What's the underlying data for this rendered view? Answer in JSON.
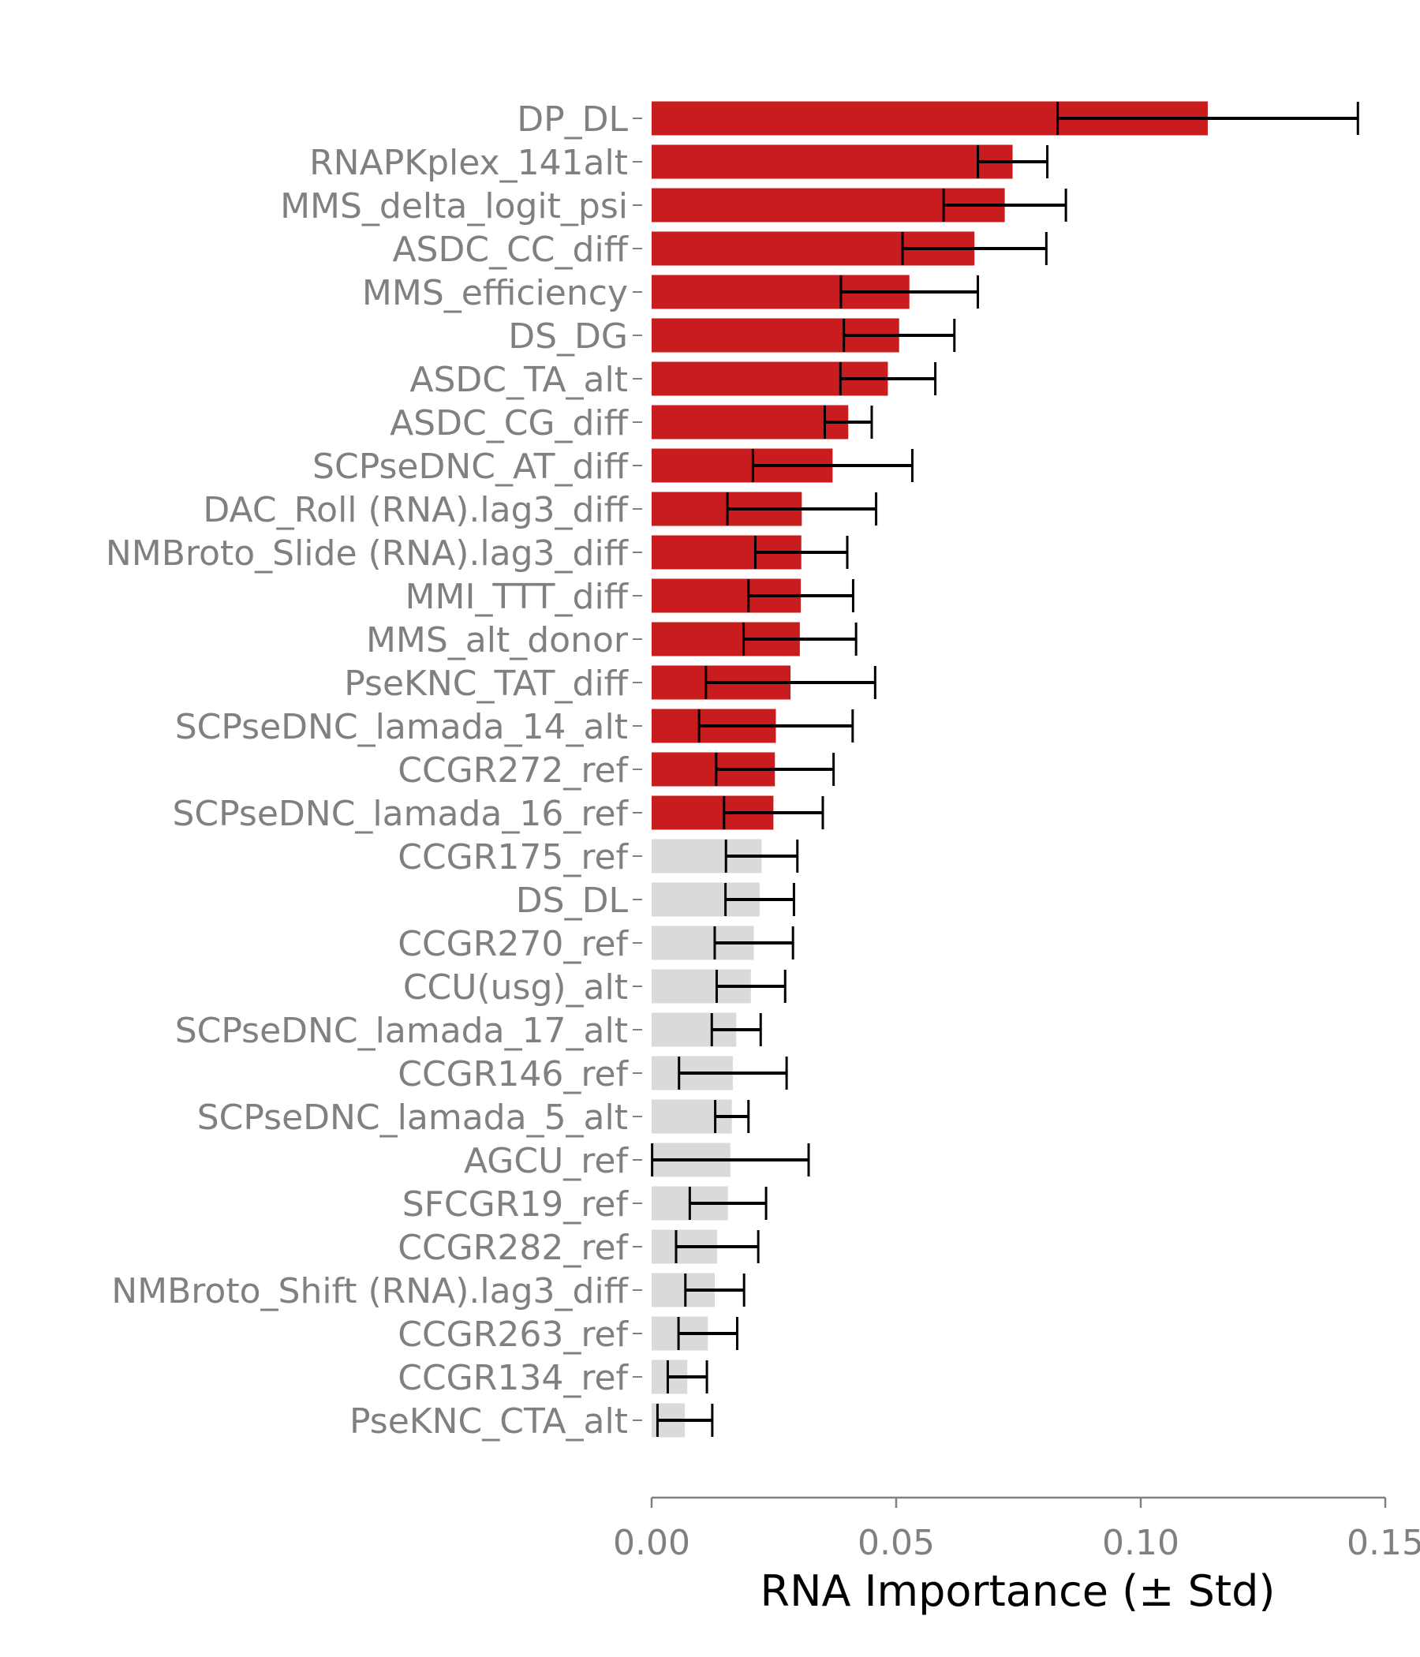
{
  "chart_data": {
    "type": "bar",
    "orientation": "horizontal",
    "xlabel": "RNA Importance (± Std)",
    "xlim": [
      0,
      0.15
    ],
    "xticks": [
      0.0,
      0.05,
      0.1,
      0.15
    ],
    "xtick_labels": [
      "0.00",
      "0.05",
      "0.10",
      "0.15"
    ],
    "grid": false,
    "colors": {
      "highlight": "#c81c1e",
      "other": "#dadada",
      "errorbar": "#000000"
    },
    "categories": [
      "DP_DL",
      "RNAPKplex_141alt",
      "MMS_delta_logit_psi",
      "ASDC_CC_diff",
      "MMS_efficiency",
      "DS_DG",
      "ASDC_TA_alt",
      "ASDC_CG_diff",
      "SCPseDNC_AT_diff",
      "DAC_Roll (RNA).lag3_diff",
      "NMBroto_Slide (RNA).lag3_diff",
      "MMI_TTT_diff",
      "MMS_alt_donor",
      "PseKNC_TAT_diff",
      "SCPseDNC_lamada_14_alt",
      "CCGR272_ref",
      "SCPseDNC_lamada_16_ref",
      "CCGR175_ref",
      "DS_DL",
      "CCGR270_ref",
      "CCU(usg)_alt",
      "SCPseDNC_lamada_17_alt",
      "CCGR146_ref",
      "SCPseDNC_lamada_5_alt",
      "AGCU_ref",
      "SFCGR19_ref",
      "CCGR282_ref",
      "NMBroto_Shift (RNA).lag3_diff",
      "CCGR263_ref",
      "CCGR134_ref",
      "PseKNC_CTA_alt"
    ],
    "values": [
      0.1137,
      0.0738,
      0.0722,
      0.066,
      0.0527,
      0.0506,
      0.0483,
      0.0402,
      0.037,
      0.0307,
      0.0306,
      0.0305,
      0.0303,
      0.0284,
      0.0254,
      0.0252,
      0.0249,
      0.0225,
      0.0221,
      0.0209,
      0.0203,
      0.0173,
      0.0166,
      0.0164,
      0.0161,
      0.0156,
      0.0134,
      0.0129,
      0.0115,
      0.0073,
      0.0068
    ],
    "std": [
      0.0307,
      0.0071,
      0.0125,
      0.0147,
      0.014,
      0.0113,
      0.0097,
      0.0048,
      0.0163,
      0.0152,
      0.0094,
      0.0107,
      0.0115,
      0.0173,
      0.0157,
      0.012,
      0.0101,
      0.0073,
      0.007,
      0.008,
      0.007,
      0.005,
      0.011,
      0.0034,
      0.016,
      0.0078,
      0.0084,
      0.006,
      0.006,
      0.004,
      0.0056
    ],
    "highlighted_count": 17
  }
}
